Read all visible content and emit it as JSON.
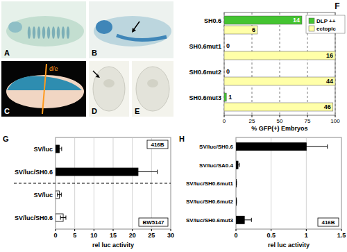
{
  "images": [
    {
      "label": "A"
    },
    {
      "label": "B"
    },
    {
      "label": "C",
      "annotation": "d/e"
    },
    {
      "label": "D"
    },
    {
      "label": "E"
    }
  ],
  "chart_data": [
    {
      "type": "bar",
      "title": "F",
      "orientation": "horizontal",
      "categories": [
        "SH0.6",
        "SH0.6mut1",
        "SH0.6mut2",
        "SH0.6mut3"
      ],
      "series": [
        {
          "name": "DLP ++",
          "color": "#44c431",
          "values": [
            70,
            0,
            0,
            2
          ],
          "counts": [
            14,
            0,
            0,
            1
          ]
        },
        {
          "name": "ectopic",
          "color": "#ffffa8",
          "values": [
            30,
            100,
            100,
            98
          ],
          "counts": [
            6,
            16,
            44,
            46
          ]
        }
      ],
      "xlabel": "% GFP(+) Embryos",
      "xlim": [
        0,
        100
      ],
      "xticks": [
        0,
        25,
        50,
        75,
        100
      ],
      "grid": true,
      "legend": "top-right"
    },
    {
      "type": "bar",
      "title": "G",
      "orientation": "horizontal",
      "categories": [
        "SV/luc",
        "SV/luc/SH0.6",
        "SV/luc",
        "SV/luc/SH0.6"
      ],
      "values": [
        1,
        21.5,
        1,
        2
      ],
      "errors": [
        0.6,
        5,
        0.5,
        0.7
      ],
      "colors": [
        "#000000",
        "#000000",
        "#ffffff",
        "#ffffff"
      ],
      "annotations": [
        "416B",
        "BW5147"
      ],
      "xlabel": "rel luc activity",
      "xlim": [
        0,
        30
      ],
      "xticks": [
        0,
        5,
        10,
        15,
        20,
        25,
        30
      ],
      "grid": true
    },
    {
      "type": "bar",
      "title": "H",
      "orientation": "horizontal",
      "categories": [
        "SV/luc/SH0.6",
        "SV/luc/SA0.4",
        "SV/luc/SH0.6mut1",
        "SV/luc/SH0.6mut2",
        "SV/luc/SH0.6mut3"
      ],
      "values": [
        1,
        0.03,
        0.005,
        0.005,
        0.12
      ],
      "errors": [
        0.3,
        0.02,
        0.003,
        0.003,
        0.1
      ],
      "color": "#000000",
      "annotations": [
        "416B"
      ],
      "xlabel": "rel luc activity",
      "xlim": [
        0,
        1.5
      ],
      "xticks": [
        0,
        0.5,
        1,
        1.5
      ],
      "grid": true
    }
  ]
}
